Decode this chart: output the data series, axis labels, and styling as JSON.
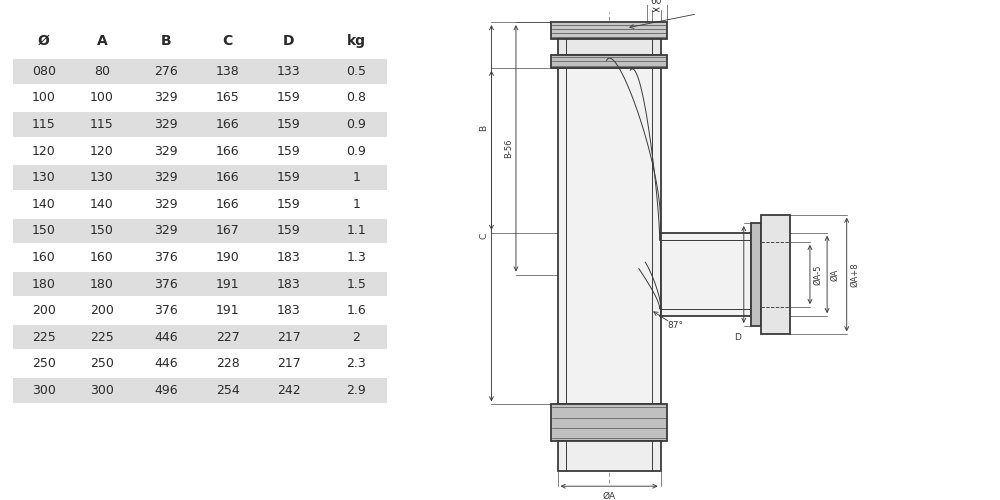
{
  "table_headers": [
    "Ø",
    "A",
    "B",
    "C",
    "D",
    "kg"
  ],
  "table_data": [
    [
      "080",
      "80",
      "276",
      "138",
      "133",
      "0.5"
    ],
    [
      "100",
      "100",
      "329",
      "165",
      "159",
      "0.8"
    ],
    [
      "115",
      "115",
      "329",
      "166",
      "159",
      "0.9"
    ],
    [
      "120",
      "120",
      "329",
      "166",
      "159",
      "0.9"
    ],
    [
      "130",
      "130",
      "329",
      "166",
      "159",
      "1"
    ],
    [
      "140",
      "140",
      "329",
      "166",
      "159",
      "1"
    ],
    [
      "150",
      "150",
      "329",
      "167",
      "159",
      "1.1"
    ],
    [
      "160",
      "160",
      "376",
      "190",
      "183",
      "1.3"
    ],
    [
      "180",
      "180",
      "376",
      "191",
      "183",
      "1.5"
    ],
    [
      "200",
      "200",
      "376",
      "191",
      "183",
      "1.6"
    ],
    [
      "225",
      "225",
      "446",
      "227",
      "217",
      "2"
    ],
    [
      "250",
      "250",
      "446",
      "228",
      "217",
      "2.3"
    ],
    [
      "300",
      "300",
      "496",
      "254",
      "242",
      "2.9"
    ]
  ],
  "shaded_rows": [
    0,
    2,
    4,
    6,
    8,
    10,
    12
  ],
  "bg_color": "#ffffff",
  "row_shade_color": "#dedede",
  "line_color": "#3a3a3a",
  "text_color": "#2a2a2a",
  "dim_color": "#3a3a3a"
}
